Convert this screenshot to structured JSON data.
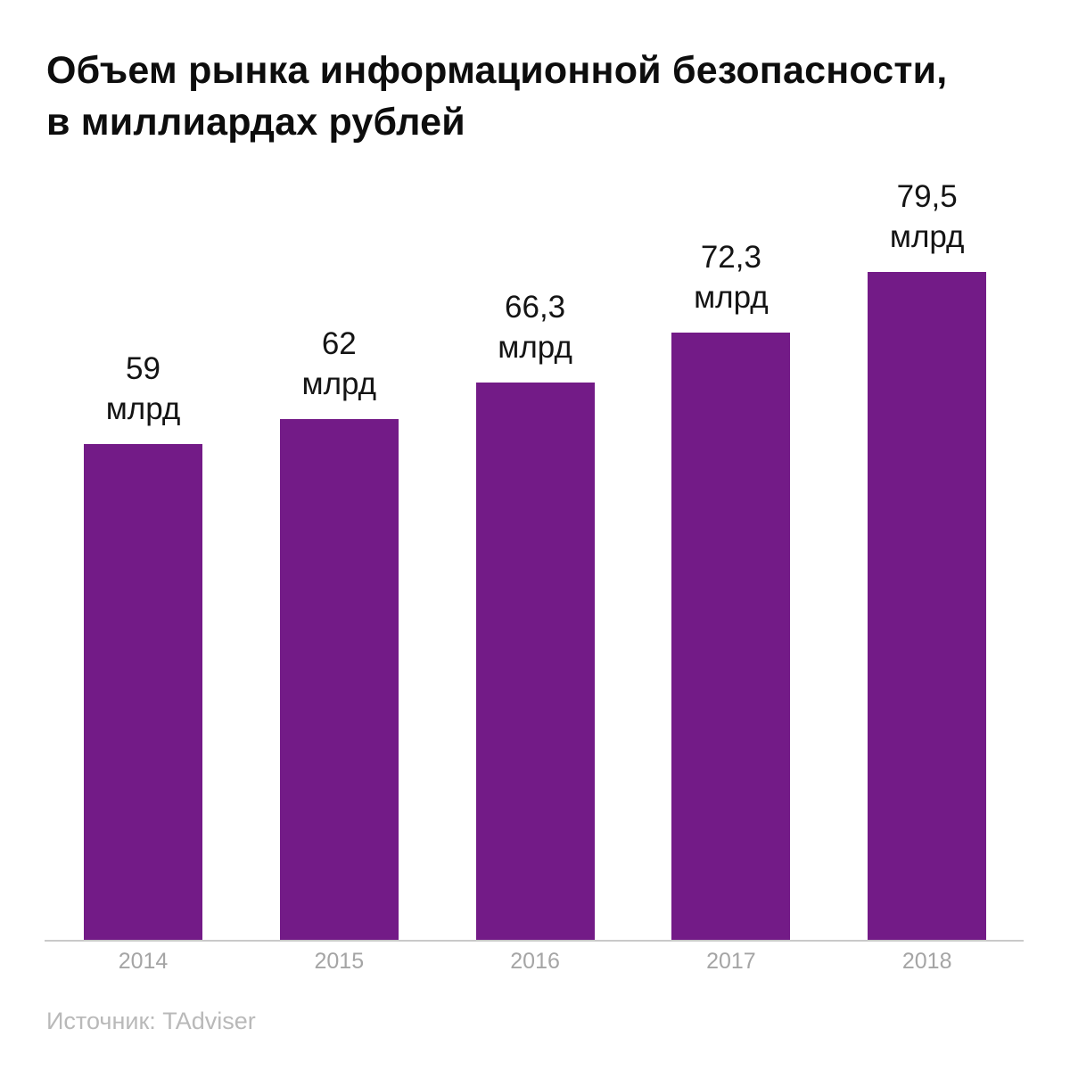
{
  "title": "Объем рынка информационной безопасности,\nв миллиардах рублей",
  "source": "Источник: TAdviser",
  "unit_label": "млрд",
  "colors": {
    "bar": "#731B87",
    "title_text": "#0d0d0d",
    "value_label_text": "#141414",
    "year_label_text": "#a5a5a5",
    "source_text": "#b9b9b9",
    "baseline": "#c9c9c9",
    "background": "#ffffff"
  },
  "chart_data": {
    "type": "bar",
    "title": "Объем рынка информационной безопасности, в миллиардах рублей",
    "categories": [
      "2014",
      "2015",
      "2016",
      "2017",
      "2018"
    ],
    "values": [
      59,
      62,
      66.3,
      72.3,
      79.5
    ],
    "value_display_labels": [
      "59",
      "62",
      "66,3",
      "72,3",
      "79,5"
    ],
    "value_unit": "млрд",
    "xlabel": "",
    "ylabel": "млрд рублей",
    "ylim": [
      0,
      85
    ],
    "grid": false,
    "legend": false,
    "data_labels": "above-bars",
    "source": "Источник: TAdviser"
  }
}
